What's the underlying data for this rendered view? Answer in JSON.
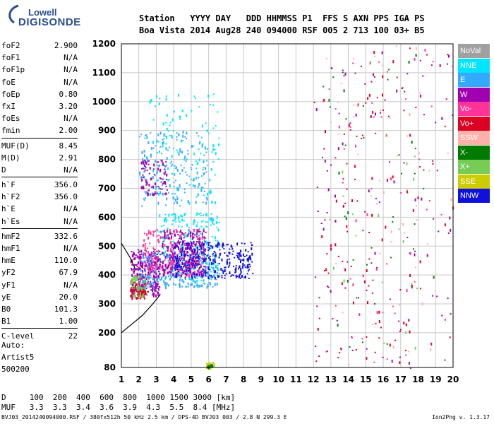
{
  "header": {
    "line1": "Station   YYYY DAY   DDD HHMMSS P1  FFS S AXN PPS IGA PS",
    "line2": "Boa Vista 2014 Aug28 240 094000 RSF 005 2 713 100 03+ B5"
  },
  "logo": {
    "top": "Lowell",
    "bottom": "DIGISONDE"
  },
  "params": [
    {
      "k": "foF2",
      "v": "2.900"
    },
    {
      "k": "foF1",
      "v": "N/A"
    },
    {
      "k": "foF1p",
      "v": "N/A"
    },
    {
      "k": "foE",
      "v": "N/A"
    },
    {
      "k": "foEp",
      "v": "0.80"
    },
    {
      "k": "fxI",
      "v": "3.20"
    },
    {
      "k": "foEs",
      "v": "N/A"
    },
    {
      "k": "fmin",
      "v": "2.00"
    },
    {
      "k": "MUF(D)",
      "v": "8.45"
    },
    {
      "k": "M(D)",
      "v": "2.91"
    },
    {
      "k": "D",
      "v": "N/A"
    },
    {
      "k": "h`F",
      "v": "356.0"
    },
    {
      "k": "h`F2",
      "v": "356.0"
    },
    {
      "k": "h`E",
      "v": "N/A"
    },
    {
      "k": "h`Es",
      "v": "N/A"
    },
    {
      "k": "hmF2",
      "v": "332.6"
    },
    {
      "k": "hmF1",
      "v": "N/A"
    },
    {
      "k": "hmE",
      "v": "110.0"
    },
    {
      "k": "yF2",
      "v": "67.9"
    },
    {
      "k": "yF1",
      "v": "N/A"
    },
    {
      "k": "yE",
      "v": "20.0"
    },
    {
      "k": "B0",
      "v": "101.3"
    },
    {
      "k": "B1",
      "v": "1.00"
    },
    {
      "k": "C-level",
      "v": "22"
    }
  ],
  "extra": {
    "auto": "Auto:",
    "artist": "Artist5",
    "version": "500200"
  },
  "dmuf": {
    "line1": "D     100  200  400  600  800  1000 1500 3000 [km]",
    "line2": "MUF   3.3  3.3  3.4  3.6  3.9  4.3  5.5  8.4 [MHz]"
  },
  "footer": {
    "left": "BVJ03_2014240094000.RSF / 380fx512h 50 kHz 2.5 km / DPS-4D BVJ03 003 / 2.8 N 299.3 E",
    "right": "Ion2Png v. 1.3.17"
  },
  "legend": [
    {
      "name": "NoVal",
      "color": "#a0a0a0"
    },
    {
      "name": "NNE",
      "color": "#00e5ff"
    },
    {
      "name": "E",
      "color": "#33aaff"
    },
    {
      "name": "W",
      "color": "#a000b0"
    },
    {
      "name": "Vo-",
      "color": "#ff3399"
    },
    {
      "name": "Vo+",
      "color": "#dd0022"
    },
    {
      "name": "SSW",
      "color": "#ffb0a8"
    },
    {
      "name": "X-",
      "color": "#007a00"
    },
    {
      "name": "X+",
      "color": "#77cc55"
    },
    {
      "name": "SSE",
      "color": "#cccc00"
    },
    {
      "name": "NNW",
      "color": "#1010dd"
    }
  ],
  "chart_data": {
    "type": "scatter",
    "xlim": [
      1,
      20
    ],
    "ylim": [
      80,
      1200
    ],
    "x_ticks": [
      1,
      2,
      3,
      4,
      5,
      6,
      7,
      8,
      9,
      10,
      11,
      12,
      13,
      14,
      15,
      16,
      17,
      18,
      19,
      20
    ],
    "y_ticks": [
      80,
      200,
      300,
      400,
      500,
      600,
      700,
      800,
      900,
      1000,
      1100,
      1200
    ],
    "grid": true,
    "legend_position": "right",
    "trace_line": [
      [
        1,
        200
      ],
      [
        1.6,
        230
      ],
      [
        2.2,
        260
      ],
      [
        2.8,
        300
      ],
      [
        3.2,
        330
      ]
    ],
    "trace_line2": [
      [
        1,
        510
      ],
      [
        1.5,
        460
      ],
      [
        1.8,
        420
      ]
    ],
    "clusters": [
      {
        "series": "W",
        "x": [
          1.5,
          3.2
        ],
        "y": [
          330,
          490
        ],
        "n": 320
      },
      {
        "series": "Vo+",
        "x": [
          1.5,
          2.4
        ],
        "y": [
          320,
          380
        ],
        "n": 90
      },
      {
        "series": "X+",
        "x": [
          1.5,
          2.5
        ],
        "y": [
          330,
          400
        ],
        "n": 70
      },
      {
        "series": "E",
        "x": [
          2.0,
          6.5
        ],
        "y": [
          360,
          480
        ],
        "n": 280
      },
      {
        "series": "NNE",
        "x": [
          3.0,
          6.6
        ],
        "y": [
          380,
          620
        ],
        "n": 220
      },
      {
        "series": "Vo-",
        "x": [
          2.2,
          5.8
        ],
        "y": [
          400,
          560
        ],
        "n": 220
      },
      {
        "series": "W",
        "x": [
          3.3,
          5.8
        ],
        "y": [
          400,
          560
        ],
        "n": 260
      },
      {
        "series": "NNW",
        "x": [
          4.0,
          8.5
        ],
        "y": [
          390,
          520
        ],
        "n": 300
      },
      {
        "series": "E",
        "x": [
          2.0,
          5.9
        ],
        "y": [
          640,
          900
        ],
        "n": 180
      },
      {
        "series": "W",
        "x": [
          2.1,
          3.6
        ],
        "y": [
          680,
          800
        ],
        "n": 80
      },
      {
        "series": "NNE",
        "x": [
          2.5,
          6.6
        ],
        "y": [
          650,
          1040
        ],
        "n": 120
      },
      {
        "series": "SSE",
        "x": [
          5.8,
          6.3
        ],
        "y": [
          80,
          100
        ],
        "n": 25
      },
      {
        "series": "X-",
        "x": [
          5.9,
          6.2
        ],
        "y": [
          82,
          95
        ],
        "n": 15
      },
      {
        "series": "Vo+",
        "x": [
          12.0,
          20.0
        ],
        "y": [
          80,
          1200
        ],
        "n": 140
      },
      {
        "series": "W",
        "x": [
          12.0,
          20.0
        ],
        "y": [
          80,
          1200
        ],
        "n": 80
      },
      {
        "series": "X-",
        "x": [
          12.5,
          19.0
        ],
        "y": [
          150,
          1200
        ],
        "n": 45
      },
      {
        "series": "SSW",
        "x": [
          12.5,
          20.0
        ],
        "y": [
          80,
          1200
        ],
        "n": 50
      },
      {
        "series": "Vo-",
        "x": [
          12.5,
          19.5
        ],
        "y": [
          80,
          1200
        ],
        "n": 50
      },
      {
        "series": "X+",
        "x": [
          12.5,
          18.0
        ],
        "y": [
          150,
          900
        ],
        "n": 20
      }
    ]
  }
}
